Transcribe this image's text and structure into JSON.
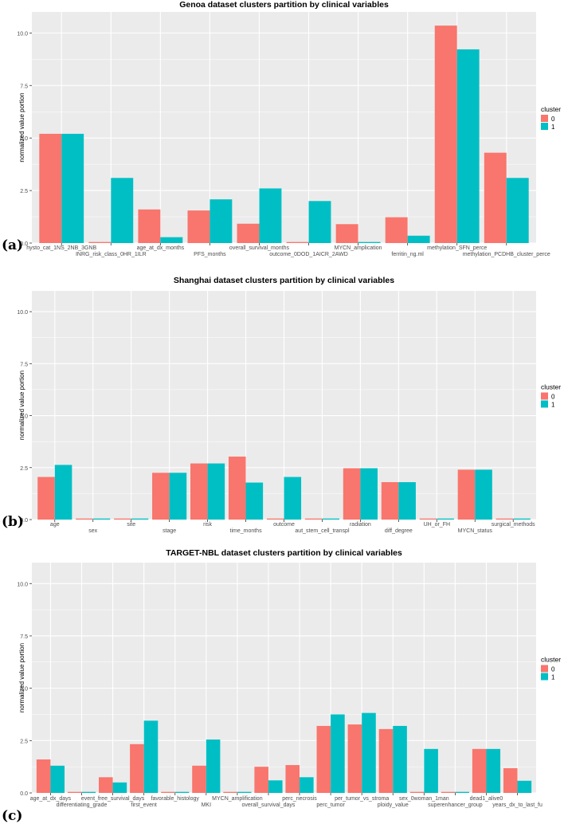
{
  "chart_data": [
    {
      "type": "bar",
      "panel_label": "(a)",
      "title": "Genoa dataset clusters partition by clinical variables",
      "xlabel": "",
      "ylabel": "normalized value portion",
      "ylim": [
        0,
        11
      ],
      "yticks": [
        0,
        2.5,
        5,
        7.5,
        10
      ],
      "ytick_labels": [
        "0.0",
        "2.5",
        "5.0",
        "7.5",
        "10.0"
      ],
      "grid": true,
      "legend": {
        "title": "cluster",
        "entries": [
          "0",
          "1"
        ],
        "placement": "right"
      },
      "categories": [
        "hysto_cat_1NS_2NB_3GNB",
        "INRG_risk_class_0HR_1ILR",
        "age_at_dx_months",
        "PFS_months",
        "overall_survival_months",
        "outcome_0DOD_1AICR_2AWD",
        "MYCN_amplication",
        "ferritin_ng.ml",
        "methylation_SFN_perce",
        "methylation_PCDHB_cluster_perce"
      ],
      "series": [
        {
          "name": "0",
          "values": [
            5.2,
            0.05,
            1.6,
            1.55,
            0.92,
            0.05,
            0.9,
            1.23,
            10.35,
            4.3
          ]
        },
        {
          "name": "1",
          "values": [
            5.2,
            3.1,
            0.28,
            2.08,
            2.6,
            2.0,
            0.05,
            0.35,
            9.22,
            3.1
          ]
        }
      ]
    },
    {
      "type": "bar",
      "panel_label": "(b)",
      "title": "Shanghai dataset clusters partition by clinical variables",
      "xlabel": "",
      "ylabel": "normalized value portion",
      "ylim": [
        0,
        11
      ],
      "yticks": [
        0,
        2.5,
        5,
        7.5,
        10
      ],
      "ytick_labels": [
        "0.0",
        "2.5",
        "5.0",
        "7.5",
        "10.0"
      ],
      "grid": true,
      "legend": {
        "title": "cluster",
        "entries": [
          "0",
          "1"
        ],
        "placement": "right"
      },
      "categories": [
        "age",
        "sex",
        "site",
        "stage",
        "risk",
        "time_months",
        "outcome",
        "aut_stem_cell_transpl",
        "radiation",
        "diff_degree",
        "UH_or_FH",
        "MYCN_status",
        "surgical_methods"
      ],
      "series": [
        {
          "name": "0",
          "values": [
            2.05,
            0.05,
            0.05,
            2.25,
            2.7,
            3.03,
            0.05,
            0.05,
            2.47,
            1.8,
            0.05,
            2.4,
            0.05
          ]
        },
        {
          "name": "1",
          "values": [
            2.63,
            0.05,
            0.05,
            2.25,
            2.7,
            1.78,
            2.05,
            0.05,
            2.47,
            1.8,
            0.05,
            2.4,
            0.05
          ]
        }
      ]
    },
    {
      "type": "bar",
      "panel_label": "(c)",
      "title": "TARGET-NBL dataset clusters partition by clinical variables",
      "xlabel": "",
      "ylabel": "normalized value portion",
      "ylim": [
        0,
        11
      ],
      "yticks": [
        0,
        2.5,
        5,
        7.5,
        10
      ],
      "ytick_labels": [
        "0.0",
        "2.5",
        "5.0",
        "7.5",
        "10.0"
      ],
      "grid": true,
      "legend": {
        "title": "cluster",
        "entries": [
          "0",
          "1"
        ],
        "placement": "right"
      },
      "categories": [
        "age_at_dx_days",
        "differentiating_grade",
        "event_free_survival_days",
        "first_event",
        "favorable_histology",
        "MKI",
        "MYCN_amplification",
        "overall_survival_days",
        "perc_necrosis",
        "perc_tumor",
        "per_tumor_vs_stroma",
        "ploidy_value",
        "sex_0woman_1man",
        "superenhancer_group",
        "dead1_alive0",
        "years_dx_to_last_fu"
      ],
      "series": [
        {
          "name": "0",
          "values": [
            1.6,
            0.05,
            0.75,
            2.33,
            0.05,
            1.3,
            0.05,
            1.25,
            1.33,
            3.2,
            3.27,
            3.05,
            0.05,
            0.05,
            2.1,
            1.18
          ]
        },
        {
          "name": "1",
          "values": [
            1.3,
            0.05,
            0.5,
            3.45,
            0.05,
            2.55,
            0.05,
            0.6,
            0.75,
            3.75,
            3.82,
            3.2,
            2.1,
            0.05,
            2.1,
            0.58
          ]
        }
      ]
    }
  ],
  "colors": {
    "cluster_0": "#F8766D",
    "cluster_1": "#00BFC4",
    "panel_background": "#EBEBEB",
    "gridline": "#FFFFFF",
    "text": "#000000",
    "tick_text": "#4D4D4D"
  }
}
